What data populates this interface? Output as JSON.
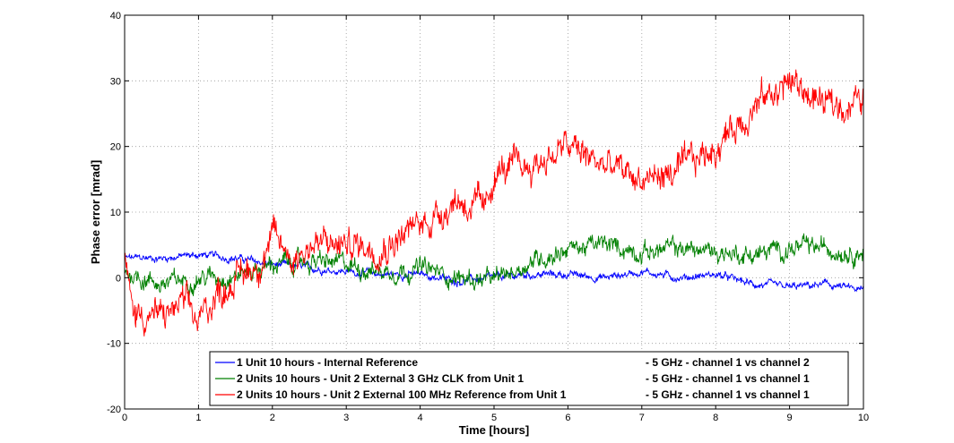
{
  "chart_data": {
    "type": "line",
    "title": "",
    "xlabel": "Time [hours]",
    "ylabel": "Phase error [mrad]",
    "xlim": [
      0,
      10
    ],
    "ylim": [
      -20,
      40
    ],
    "xticks": [
      0,
      1,
      2,
      3,
      4,
      5,
      6,
      7,
      8,
      9,
      10
    ],
    "yticks": [
      -20,
      -10,
      0,
      10,
      20,
      30,
      40
    ],
    "grid": true,
    "legend_position": "bottom-right",
    "series": [
      {
        "name": "1 Unit   10 hours - Internal Reference",
        "suffix": "- 5 GHz - channel 1 vs channel 2",
        "color": "#0000ff",
        "noise": 0.6,
        "x": [
          0,
          0.5,
          1.0,
          1.5,
          2.0,
          2.5,
          3.0,
          3.5,
          4.0,
          4.5,
          5.0,
          5.5,
          6.0,
          6.5,
          7.0,
          7.5,
          8.0,
          8.5,
          9.0,
          9.5,
          10.0
        ],
        "y": [
          3,
          3,
          3.5,
          3,
          2,
          1.5,
          1,
          0.5,
          0.5,
          -0.5,
          0,
          0.5,
          0.5,
          0,
          1,
          0,
          0.5,
          -1,
          -1.5,
          -1,
          -2
        ]
      },
      {
        "name": "2 Units 10 hours - Unit 2 External 3 GHz CLK from Unit 1",
        "suffix": "- 5 GHz - channel 1 vs channel 1",
        "color": "#008000",
        "noise": 1.5,
        "x": [
          0,
          0.5,
          1.0,
          1.5,
          2.0,
          2.5,
          3.0,
          3.5,
          4.0,
          4.5,
          5.0,
          5.5,
          6.0,
          6.5,
          7.0,
          7.5,
          8.0,
          8.5,
          9.0,
          9.5,
          10.0
        ],
        "y": [
          1,
          -1,
          0,
          0.5,
          2,
          2.5,
          2,
          1,
          1.5,
          0,
          -0.5,
          2.5,
          4.5,
          5,
          4,
          4.5,
          4,
          3.5,
          4.5,
          4.5,
          4
        ]
      },
      {
        "name": "2 Units 10 hours - Unit 2 External 100 MHz Reference from Unit 1",
        "suffix": "- 5 GHz - channel 1 vs channel 1",
        "color": "#ff0000",
        "noise": 2.5,
        "x": [
          0,
          0.1,
          0.5,
          0.8,
          1.0,
          1.2,
          1.5,
          1.8,
          2.0,
          2.3,
          2.5,
          3.0,
          3.5,
          4.0,
          4.5,
          4.9,
          5.0,
          5.5,
          6.0,
          6.5,
          7.0,
          7.5,
          8.0,
          8.5,
          9.0,
          9.5,
          10.0
        ],
        "y": [
          3,
          -5,
          -6,
          -4,
          -7,
          -3,
          0,
          2,
          6,
          3,
          5,
          5,
          5,
          8,
          12,
          10,
          16,
          17,
          20,
          17,
          15,
          16,
          20,
          26,
          30,
          26,
          27
        ]
      }
    ]
  }
}
